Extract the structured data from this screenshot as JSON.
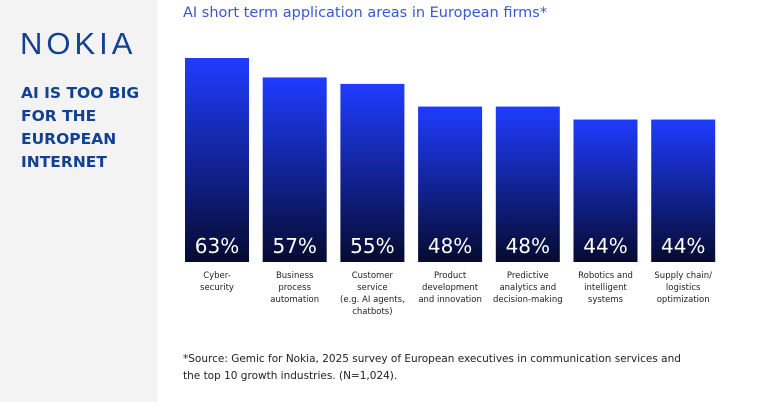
{
  "brand": "NOKIA",
  "headline": "AI IS TOO BIG\nFOR THE\nEUROPEAN\nINTERNET",
  "chart_data": {
    "type": "bar",
    "title": "AI short term application areas in European firms*",
    "categories": [
      "Cyber-\nsecurity",
      "Business\nprocess\nautomation",
      "Customer\nservice\n(e.g. AI agents,\nchatbots)",
      "Product\ndevelopment\nand innovation",
      "Predictive\nanalytics and\ndecision-making",
      "Robotics and\nintelligent\nsystems",
      "Supply chain/\nlogistics\noptimization"
    ],
    "values": [
      63,
      57,
      55,
      48,
      48,
      44,
      44
    ],
    "value_labels": [
      "63%",
      "57%",
      "55%",
      "48%",
      "48%",
      "44%",
      "44%"
    ],
    "color": "#1f3cff",
    "note": "*Source: Gemic for Nokia, 2025 survey of European executives in communication services and the top 10 growth industries. (N=1,024)."
  }
}
